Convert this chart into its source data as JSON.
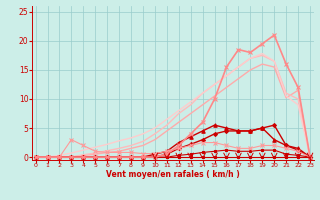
{
  "xlabel": "Vent moyen/en rafales ( km/h )",
  "bg_color": "#cceee8",
  "grid_color": "#99cccc",
  "x_values": [
    0,
    1,
    2,
    3,
    4,
    5,
    6,
    7,
    8,
    9,
    10,
    11,
    12,
    13,
    14,
    15,
    16,
    17,
    18,
    19,
    20,
    21,
    22,
    23
  ],
  "series": [
    {
      "y": [
        0,
        0,
        0,
        0,
        0,
        0,
        0,
        0,
        0,
        0,
        0,
        0,
        0,
        0,
        0,
        0,
        0,
        0,
        0,
        0,
        0,
        0,
        0,
        0
      ],
      "color": "#cc0000",
      "lw": 0.8,
      "marker": "s",
      "ms": 1.8
    },
    {
      "y": [
        0,
        0,
        0,
        0,
        0,
        0,
        0,
        0,
        0,
        0,
        0,
        0,
        0.3,
        0.5,
        0.8,
        1.0,
        1.2,
        1.0,
        1.0,
        1.2,
        1.2,
        0.5,
        0.3,
        0
      ],
      "color": "#cc0000",
      "lw": 0.8,
      "marker": "s",
      "ms": 1.8
    },
    {
      "y": [
        0,
        0,
        0,
        0,
        0,
        0,
        0,
        0,
        0,
        0,
        0,
        0.5,
        1.5,
        2.2,
        3.0,
        4.0,
        4.5,
        4.5,
        4.5,
        5.0,
        5.5,
        2.0,
        1.2,
        0
      ],
      "color": "#cc0000",
      "lw": 1.0,
      "marker": "D",
      "ms": 2.0
    },
    {
      "y": [
        0,
        0,
        0,
        0,
        0,
        0,
        0,
        0,
        0,
        0,
        0.5,
        1.0,
        2.5,
        3.5,
        4.5,
        5.5,
        5.0,
        4.5,
        4.5,
        5.0,
        3.0,
        2.0,
        1.5,
        0
      ],
      "color": "#cc0000",
      "lw": 1.0,
      "marker": "^",
      "ms": 2.5
    },
    {
      "y": [
        0,
        0,
        0,
        3.0,
        2.0,
        1.0,
        0.8,
        0.8,
        0.8,
        0.6,
        0.6,
        1.0,
        1.5,
        2.0,
        2.5,
        2.5,
        2.0,
        1.5,
        1.5,
        2.0,
        2.0,
        1.5,
        1.0,
        0
      ],
      "color": "#ff9999",
      "lw": 0.8,
      "marker": "x",
      "ms": 2.5
    },
    {
      "y": [
        0,
        0,
        0,
        0,
        0.3,
        0.5,
        0.8,
        1.0,
        1.5,
        2.0,
        3.0,
        4.5,
        6.0,
        7.5,
        9.0,
        10.5,
        12.0,
        13.5,
        15.0,
        16.0,
        15.5,
        10.2,
        11.5,
        0
      ],
      "color": "#ffaaaa",
      "lw": 1.0,
      "marker": null,
      "ms": 0
    },
    {
      "y": [
        0,
        0,
        0,
        0,
        0.4,
        0.7,
        1.1,
        1.5,
        2.0,
        2.7,
        4.0,
        5.5,
        7.5,
        9.0,
        11.0,
        12.5,
        14.0,
        15.5,
        17.0,
        17.5,
        16.5,
        11.0,
        10.0,
        0
      ],
      "color": "#ffbbbb",
      "lw": 1.0,
      "marker": null,
      "ms": 0
    },
    {
      "y": [
        0,
        0,
        0.3,
        0.7,
        1.2,
        1.7,
        2.2,
        2.8,
        3.3,
        4.0,
        5.0,
        6.5,
        8.0,
        9.5,
        11.0,
        12.5,
        14.0,
        15.5,
        17.0,
        17.8,
        16.5,
        10.5,
        9.0,
        0
      ],
      "color": "#ffcccc",
      "lw": 1.0,
      "marker": null,
      "ms": 0
    },
    {
      "y": [
        0,
        0,
        0,
        0,
        0,
        0,
        0,
        0,
        0,
        0,
        0,
        0.5,
        2.0,
        4.0,
        6.0,
        10.0,
        15.5,
        18.5,
        18.0,
        19.5,
        21.0,
        16.0,
        12.0,
        0
      ],
      "color": "#ff8888",
      "lw": 1.2,
      "marker": "x",
      "ms": 2.5
    }
  ],
  "arrows_x": [
    10,
    11,
    12,
    13,
    14,
    15,
    16,
    17,
    18,
    19,
    20,
    21,
    22,
    23
  ],
  "xlim": [
    -0.3,
    23.3
  ],
  "ylim": [
    -0.5,
    26
  ],
  "yticks": [
    0,
    5,
    10,
    15,
    20,
    25
  ],
  "xticks": [
    0,
    1,
    2,
    3,
    4,
    5,
    6,
    7,
    8,
    9,
    10,
    11,
    12,
    13,
    14,
    15,
    16,
    17,
    18,
    19,
    20,
    21,
    22,
    23
  ]
}
